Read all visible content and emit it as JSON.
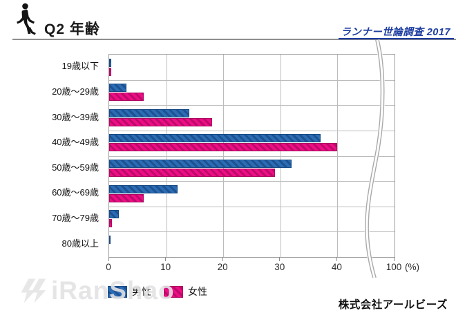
{
  "header": {
    "title": "Q2 年齢",
    "survey_label": "ランナー世論調査 2017",
    "accent_color": "#1c3ca0",
    "line_color": "#8e8e8e"
  },
  "chart_data": {
    "type": "bar",
    "orientation": "horizontal",
    "title": "Q2 年齢",
    "categories": [
      "19歳以下",
      "20歳〜29歳",
      "30歳〜39歳",
      "40歳〜49歳",
      "50歳〜59歳",
      "60歳〜69歳",
      "70歳〜79歳",
      "80歳以上"
    ],
    "series": [
      {
        "name": "男性",
        "values": [
          0.4,
          3,
          14,
          37,
          32,
          12,
          1.7,
          0.2
        ],
        "color": "#2b6cb4",
        "stripe": "#1d5190",
        "border": "#174a85"
      },
      {
        "name": "女性",
        "values": [
          0.4,
          6,
          18,
          40,
          29,
          6,
          0.5,
          0
        ],
        "color": "#ed0d86",
        "stripe": "#bd0a68",
        "border": "#ad0961"
      }
    ],
    "x_ticks": [
      0,
      10,
      20,
      30,
      40
    ],
    "x_break_label": "100",
    "x_unit": "(%)",
    "xlim_display": [
      0,
      50
    ],
    "axis_break": true,
    "grid": true,
    "legend_position": "bottom-left"
  },
  "watermark": {
    "text": "iRanShao"
  },
  "footer": {
    "company": "株式会社アールビーズ"
  }
}
